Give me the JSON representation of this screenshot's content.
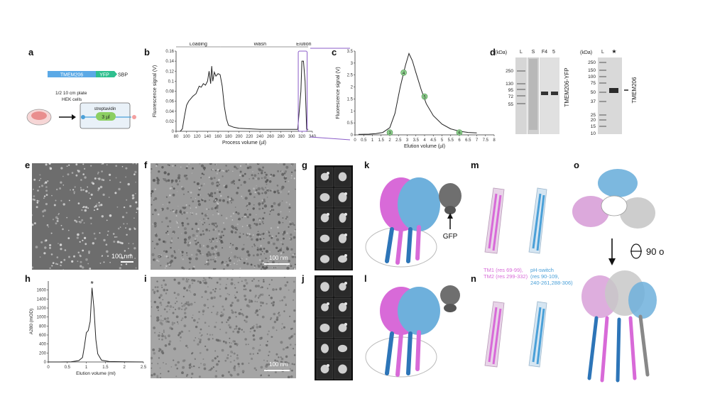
{
  "panels": {
    "a": {
      "letter": "a",
      "construct": [
        "TMEM206",
        "YFP",
        "SBP"
      ],
      "plate_note": "1/2 10 cm plate\nHEK cells",
      "resin_label": "streptavidin",
      "volume_label": "3 µl"
    },
    "b": {
      "letter": "b"
    },
    "c": {
      "letter": "c"
    },
    "d": {
      "letter": "d",
      "gel1": {
        "unit": "(kDa)",
        "lanes": [
          "L",
          "S",
          "F4",
          "5"
        ],
        "markers": [
          "250",
          "130",
          "95",
          "72",
          "55"
        ],
        "band_label": "TMEM206-YFP"
      },
      "gel2": {
        "unit": "(kDa)",
        "lanes": [
          "L",
          "★"
        ],
        "markers": [
          "250",
          "150",
          "100",
          "75",
          "50",
          "37",
          "25",
          "20",
          "15",
          "10"
        ],
        "band_label": "TMEM206"
      }
    },
    "e": {
      "letter": "e",
      "scale": "100 nm"
    },
    "f": {
      "letter": "f",
      "scale": "100 nm"
    },
    "g": {
      "letter": "g"
    },
    "h": {
      "letter": "h"
    },
    "i": {
      "letter": "i",
      "scale": "100 nm"
    },
    "j": {
      "letter": "j"
    },
    "k": {
      "letter": "k",
      "gfp_label": "GFP"
    },
    "l": {
      "letter": "l"
    },
    "m": {
      "letter": "m"
    },
    "n": {
      "letter": "n",
      "legend_tm": "TM1 (res 69-99),\nTM2 (res 299-332)",
      "legend_ph": "pH-switch\n(res 90-109,\n240-261,288-306)"
    },
    "o": {
      "letter": "o",
      "rotation": "90 o"
    }
  },
  "colors": {
    "magenta": "#d86ad8",
    "blue": "#4aa0d8",
    "purple_box": "#8b5cc8",
    "tmem_bar": "#5ba9e6",
    "yfp_bar": "#2fbf8f",
    "marker_green": "#8fd48f"
  },
  "chart_data": [
    {
      "id": "b",
      "type": "line",
      "xlabel": "Process volume (µl)",
      "ylabel": "Fluorescence signal (V)",
      "xlim": [
        80,
        340
      ],
      "ylim": [
        0,
        0.16
      ],
      "xticks": [
        80,
        100,
        120,
        140,
        160,
        180,
        200,
        220,
        240,
        260,
        280,
        300,
        320,
        340
      ],
      "yticks": [
        0,
        0.02,
        0.04,
        0.06,
        0.08,
        0.1,
        0.12,
        0.14,
        0.16
      ],
      "phases": [
        {
          "label": "Loading",
          "x": [
            80,
            165
          ]
        },
        {
          "label": "Wash",
          "x": [
            165,
            315
          ]
        },
        {
          "label": "Elution",
          "x": [
            315,
            332
          ]
        }
      ],
      "x": [
        88,
        92,
        96,
        100,
        104,
        108,
        112,
        118,
        124,
        128,
        132,
        136,
        140,
        143,
        146,
        148,
        150,
        153,
        156,
        160,
        164,
        168,
        172,
        176,
        180,
        190,
        200,
        220,
        240,
        260,
        280,
        300,
        312,
        318,
        320,
        323,
        326,
        329,
        332
      ],
      "y": [
        0.0,
        0.005,
        0.03,
        0.052,
        0.06,
        0.065,
        0.07,
        0.075,
        0.09,
        0.088,
        0.095,
        0.092,
        0.1,
        0.12,
        0.095,
        0.13,
        0.1,
        0.118,
        0.11,
        0.115,
        0.113,
        0.09,
        0.05,
        0.025,
        0.012,
        0.008,
        0.006,
        0.005,
        0.004,
        0.004,
        0.004,
        0.004,
        0.004,
        0.08,
        0.14,
        0.14,
        0.1,
        0.004,
        0.004
      ]
    },
    {
      "id": "c",
      "type": "line",
      "xlabel": "Elution volume (µl)",
      "ylabel": "Fluorescence signal (V)",
      "xlim": [
        0,
        8
      ],
      "ylim": [
        0,
        3.5
      ],
      "xticks": [
        0,
        0.5,
        1,
        1.5,
        2,
        2.5,
        3,
        3.5,
        4,
        4.5,
        5,
        5.5,
        6,
        6.5,
        7,
        7.5,
        8
      ],
      "yticks": [
        0,
        0.5,
        1,
        1.5,
        2,
        2.5,
        3,
        3.5
      ],
      "x": [
        0.2,
        0.8,
        1.2,
        1.6,
        2.0,
        2.3,
        2.6,
        2.9,
        3.1,
        3.3,
        3.5,
        3.8,
        4.1,
        4.5,
        5.0,
        5.5,
        6.0,
        6.5,
        7.0
      ],
      "y": [
        0.02,
        0.03,
        0.05,
        0.1,
        0.3,
        0.9,
        2.0,
        2.9,
        3.4,
        3.1,
        2.6,
        1.9,
        1.3,
        0.8,
        0.45,
        0.25,
        0.15,
        0.1,
        0.08
      ],
      "fractions": [
        {
          "label": "3",
          "x": 2.0,
          "y": 0.1
        },
        {
          "label": "4",
          "x": 2.8,
          "y": 2.6
        },
        {
          "label": "5",
          "x": 4.0,
          "y": 1.6
        },
        {
          "label": "6",
          "x": 6.0,
          "y": 0.1
        }
      ]
    },
    {
      "id": "h",
      "type": "line",
      "xlabel": "Elution volume (ml)",
      "ylabel": "A280 (mOD)",
      "xlim": [
        0,
        2.5
      ],
      "ylim": [
        0,
        1800
      ],
      "xticks": [
        0,
        0.5,
        1,
        1.5,
        2,
        2.5
      ],
      "yticks": [
        0,
        200,
        400,
        600,
        800,
        1000,
        1200,
        1400,
        1600
      ],
      "x": [
        0,
        0.3,
        0.6,
        0.8,
        0.9,
        0.95,
        1.0,
        1.05,
        1.1,
        1.15,
        1.2,
        1.25,
        1.3,
        1.4,
        1.6,
        2.0,
        2.5
      ],
      "y": [
        0,
        0,
        5,
        30,
        100,
        350,
        650,
        700,
        900,
        1650,
        1200,
        500,
        180,
        40,
        10,
        5,
        0
      ],
      "peak_marker": "*"
    }
  ]
}
